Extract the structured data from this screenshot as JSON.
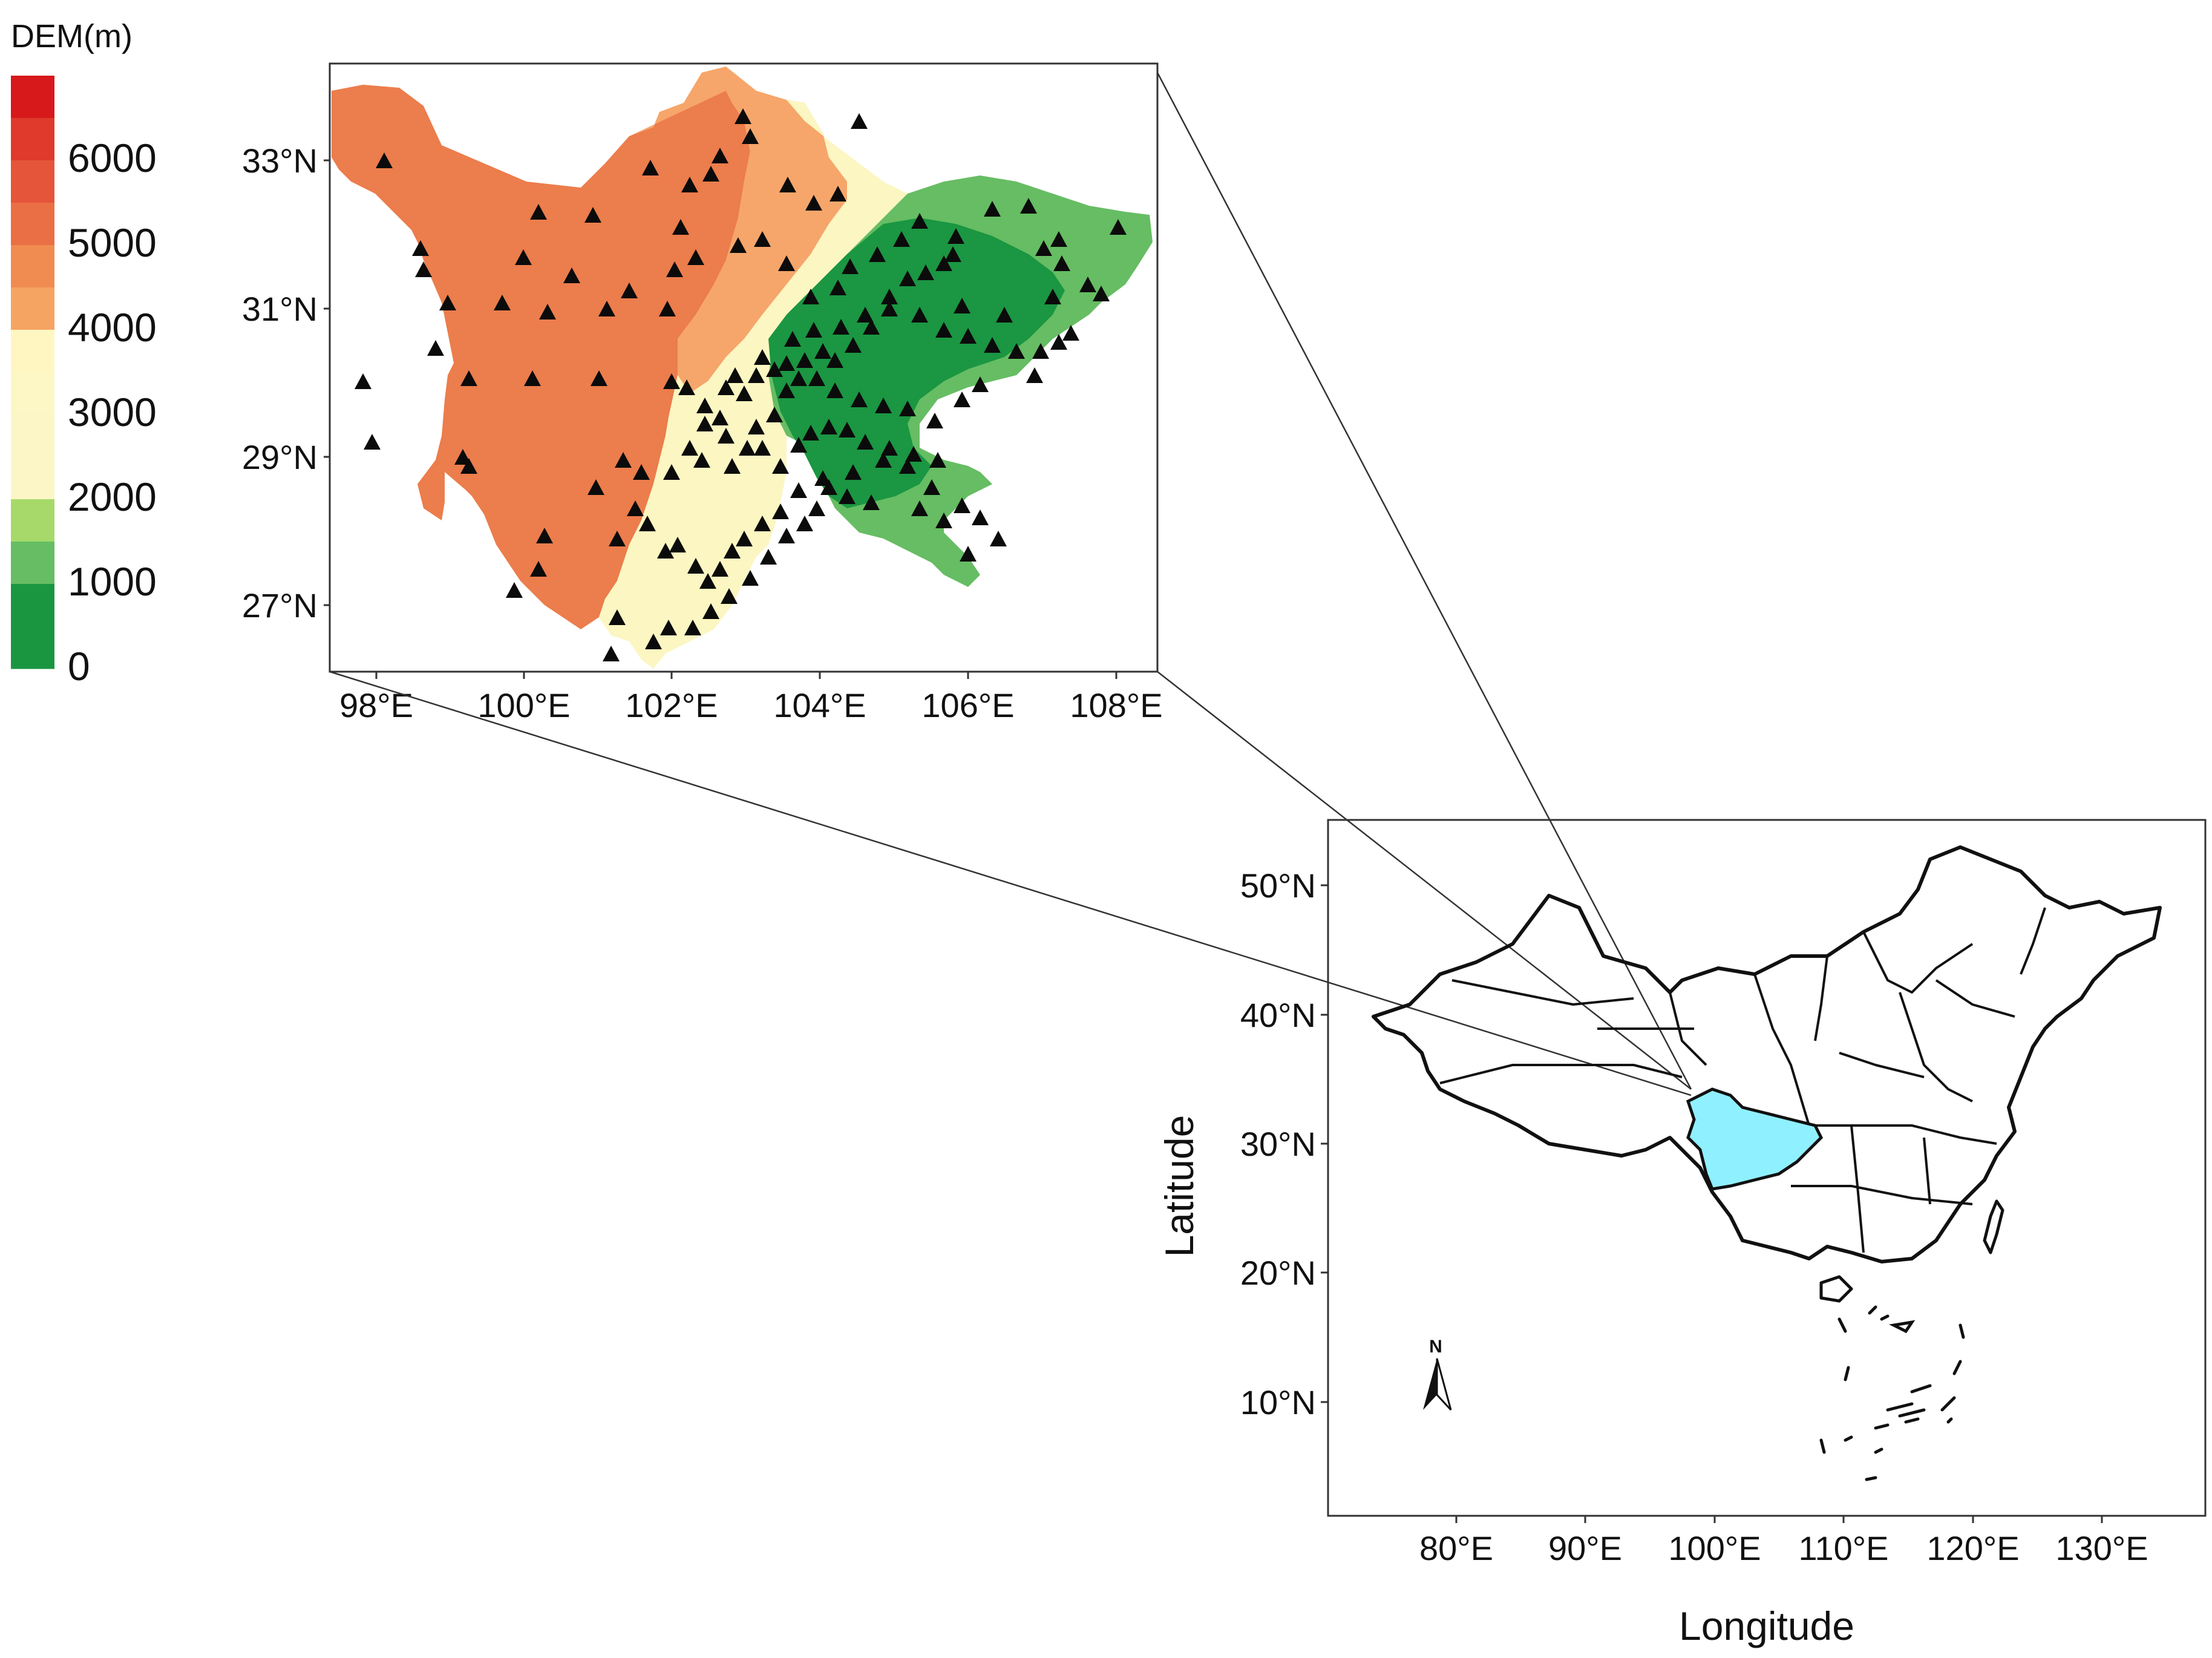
{
  "legend": {
    "title": "DEM(m)",
    "labels": [
      "6000",
      "5000",
      "4000",
      "3000",
      "2000",
      "1000",
      "0"
    ],
    "colors": [
      "#d7191c",
      "#df3a2c",
      "#e5553a",
      "#eb6f45",
      "#f08c52",
      "#f5a462",
      "#fff6c2",
      "#fdf7c6",
      "#fcf6c6",
      "#fcf6c6",
      "#a6d96a",
      "#66bd63",
      "#1a9641",
      "#1a9641"
    ]
  },
  "inset": {
    "lat_labels": [
      "33°N",
      "31°N",
      "29°N",
      "27°N"
    ],
    "lon_labels": [
      "98°E",
      "100°E",
      "102°E",
      "104°E",
      "106°E",
      "108°E"
    ],
    "colors": {
      "high": "#eb7b4b",
      "mid": "#f6a56a",
      "low": "#fcf6c2",
      "green": "#66bd63",
      "darkgreen": "#1a9641"
    },
    "station_marker": "triangle-up-icon"
  },
  "main_map": {
    "lat_labels": [
      "50°N",
      "40°N",
      "30°N",
      "20°N",
      "10°N"
    ],
    "lon_labels": [
      "80°E",
      "90°E",
      "100°E",
      "110°E",
      "120°E",
      "130°E"
    ],
    "xlabel": "Longitude",
    "ylabel": "Latitude",
    "highlight_color": "#8ff0ff",
    "north_label": "N"
  }
}
